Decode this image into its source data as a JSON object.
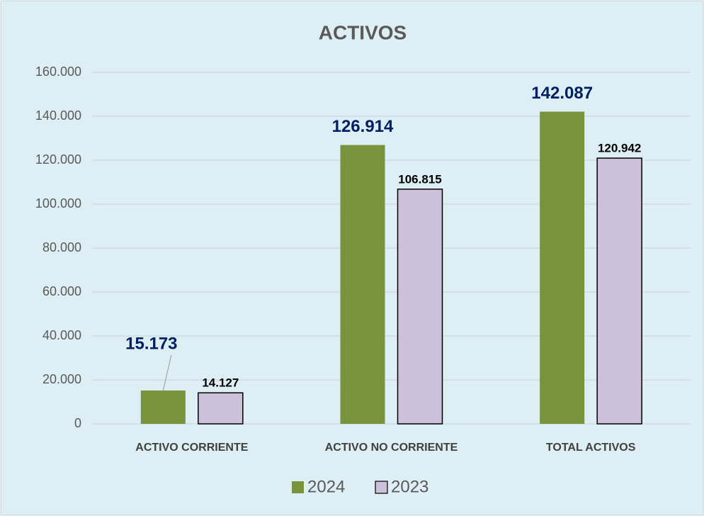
{
  "chart_data": {
    "type": "bar",
    "title": "ACTIVOS",
    "categories": [
      "ACTIVO CORRIENTE",
      "ACTIVO NO CORRIENTE",
      "TOTAL ACTIVOS"
    ],
    "series": [
      {
        "name": "2024",
        "color": "#77933c",
        "values": [
          15173,
          126914,
          142087
        ],
        "value_labels": [
          "15.173",
          "126.914",
          "142.087"
        ]
      },
      {
        "name": "2023",
        "color": "#ccc0da",
        "values": [
          14127,
          106815,
          120942
        ],
        "value_labels": [
          "14.127",
          "106.815",
          "120.942"
        ]
      }
    ],
    "ylim": [
      0,
      160000
    ],
    "yticks": [
      0,
      {
        "value": 20000,
        "label": "20.000"
      },
      {
        "value": 40000,
        "label": "40.000"
      },
      {
        "value": 60000,
        "label": "60.000"
      },
      {
        "value": 80000,
        "label": "80.000"
      },
      {
        "value": 100000,
        "label": "100.000"
      },
      {
        "value": 120000,
        "label": "120.000"
      },
      {
        "value": 140000,
        "label": "140.000"
      },
      {
        "value": 160000,
        "label": "160.000"
      }
    ],
    "grid": true,
    "legend": "bottom"
  }
}
